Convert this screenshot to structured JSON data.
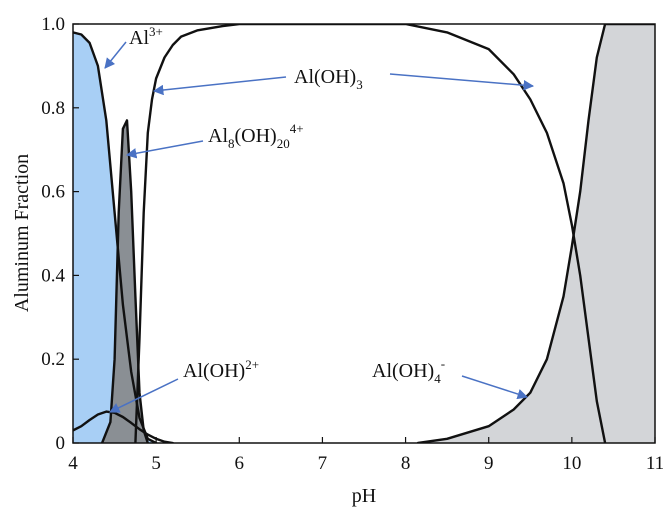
{
  "chart_data": {
    "type": "area",
    "xlabel": "pH",
    "ylabel": "Aluminum Fraction",
    "xlim": [
      4,
      11
    ],
    "ylim": [
      0,
      1
    ],
    "x_ticks": [
      "4",
      "5",
      "6",
      "7",
      "8",
      "9",
      "10",
      "11"
    ],
    "y_ticks": [
      "0",
      "0.2",
      "0.4",
      "0.6",
      "0.8",
      "1.0"
    ],
    "grid": false,
    "legend": "none",
    "series": [
      {
        "name": "Al3+",
        "fill": "#a8cff5",
        "x": [
          4.0,
          4.1,
          4.2,
          4.3,
          4.4,
          4.5,
          4.6,
          4.7,
          4.8,
          4.9,
          5.0
        ],
        "y": [
          0.98,
          0.975,
          0.955,
          0.9,
          0.77,
          0.55,
          0.33,
          0.17,
          0.06,
          0.01,
          0.0
        ]
      },
      {
        "name": "Al8(OH)20 4+",
        "fill": "#8a8f94",
        "x": [
          4.35,
          4.45,
          4.5,
          4.55,
          4.6,
          4.65,
          4.7,
          4.75,
          4.8,
          4.85,
          4.9
        ],
        "y": [
          0.0,
          0.05,
          0.2,
          0.55,
          0.75,
          0.77,
          0.6,
          0.35,
          0.12,
          0.03,
          0.0
        ]
      },
      {
        "name": "Al(OH)2+",
        "fill": "none",
        "x": [
          4.0,
          4.1,
          4.2,
          4.3,
          4.4,
          4.5,
          4.6,
          4.7,
          4.8,
          4.9,
          5.0,
          5.1,
          5.2
        ],
        "y": [
          0.03,
          0.04,
          0.055,
          0.068,
          0.075,
          0.072,
          0.062,
          0.048,
          0.033,
          0.02,
          0.01,
          0.003,
          0.0
        ]
      },
      {
        "name": "Al(OH)3",
        "fill": "none",
        "x": [
          4.75,
          4.8,
          4.85,
          4.9,
          4.95,
          5.0,
          5.1,
          5.2,
          5.3,
          5.5,
          5.8,
          6.0,
          7.0,
          8.0,
          8.5,
          9.0,
          9.3,
          9.5,
          9.7,
          9.9,
          10.0,
          10.1,
          10.2,
          10.3,
          10.4
        ],
        "y": [
          0.0,
          0.25,
          0.55,
          0.74,
          0.82,
          0.87,
          0.92,
          0.95,
          0.97,
          0.985,
          0.995,
          1.0,
          1.0,
          1.0,
          0.98,
          0.94,
          0.88,
          0.82,
          0.74,
          0.62,
          0.52,
          0.4,
          0.25,
          0.1,
          0.0
        ]
      },
      {
        "name": "Al(OH)4-",
        "fill": "#d3d5d8",
        "x": [
          8.15,
          8.5,
          9.0,
          9.3,
          9.5,
          9.7,
          9.9,
          10.0,
          10.1,
          10.2,
          10.3,
          10.4,
          10.5,
          11.0
        ],
        "y": [
          0.0,
          0.01,
          0.04,
          0.08,
          0.12,
          0.2,
          0.35,
          0.47,
          0.6,
          0.77,
          0.92,
          1.0,
          1.0,
          1.0
        ]
      }
    ],
    "annotations": [
      {
        "base": "Al",
        "sup": "3+",
        "sub": "",
        "tail": ""
      },
      {
        "base": "Al(OH)",
        "sub": "3",
        "sup": "",
        "tail": ""
      },
      {
        "base": "Al",
        "sub": "8",
        "mid": "(OH)",
        "sub2": "20",
        "sup": "4+"
      },
      {
        "base": "Al(OH)",
        "sup": "2+",
        "sub": "",
        "tail": ""
      },
      {
        "base": "Al(OH)",
        "sub": "4",
        "sup": "-",
        "tail": ""
      }
    ],
    "colors": {
      "al3": "#a8cff5",
      "al8": "#8a8f94",
      "aloh4": "#d3d5d8",
      "arrow": "#4a72c4",
      "line": "#111111"
    }
  }
}
